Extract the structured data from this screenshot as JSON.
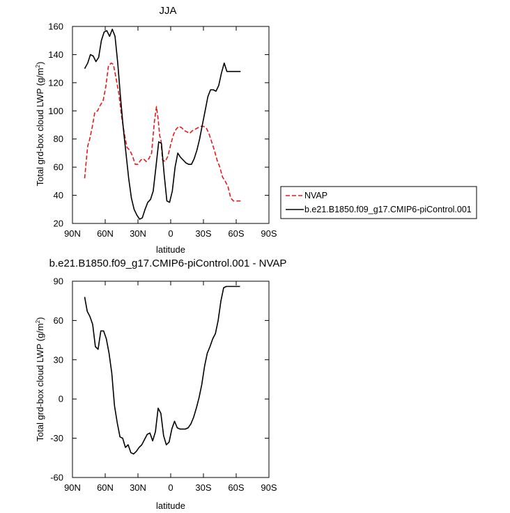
{
  "chart_data": [
    {
      "type": "line",
      "title": "JJA",
      "xlabel": "latitude",
      "ylabel": "Total grd-box cloud LWP (g/m",
      "ylabel_sup": "2",
      "ylabel_close": ")",
      "xlim": [
        90,
        -90
      ],
      "ylim": [
        20,
        160
      ],
      "xticks": [
        {
          "v": 90,
          "label": "90N"
        },
        {
          "v": 60,
          "label": "60N"
        },
        {
          "v": 30,
          "label": "30N"
        },
        {
          "v": 0,
          "label": "0"
        },
        {
          "v": -30,
          "label": "30S"
        },
        {
          "v": -60,
          "label": "60S"
        },
        {
          "v": -90,
          "label": "90S"
        }
      ],
      "yticks": [
        20,
        40,
        60,
        80,
        100,
        120,
        140,
        160
      ],
      "legend_placement": "right",
      "series": [
        {
          "name": "NVAP",
          "color": "#e41a1c",
          "dash": true,
          "x": [
            78.8,
            77.2,
            76.0,
            74.2,
            72.0,
            69.5,
            67.0,
            64.5,
            62.0,
            59.5,
            57.0,
            54.5,
            52.5,
            50.0,
            47.5,
            45.0,
            42.5,
            40.0,
            37.5,
            35.0,
            32.5,
            30.0,
            27.5,
            25.0,
            22.5,
            20.0,
            17.5,
            15.0,
            13.0,
            11.5,
            10.0,
            9.0,
            7.5,
            5.0,
            2.5,
            0.0,
            -2.5,
            -5.0,
            -7.5,
            -10.0,
            -12.5,
            -15.0,
            -17.5,
            -20.0,
            -22.5,
            -25.0,
            -27.5,
            -30.0,
            -32.5,
            -35.0,
            -37.5,
            -40.0,
            -42.5,
            -45.0,
            -47.5,
            -50.0,
            -52.5,
            -55.0,
            -57.5,
            -60.0,
            -62.5,
            -65.0
          ],
          "y": [
            52,
            66,
            75,
            80,
            88,
            99,
            100,
            104,
            107,
            117,
            132,
            134,
            133,
            123,
            112,
            96,
            84,
            74,
            72,
            68,
            62,
            62,
            65,
            66,
            64,
            66,
            70,
            92,
            103,
            94,
            82,
            80,
            65,
            64,
            68,
            76,
            83,
            87,
            89,
            88,
            86,
            85,
            84,
            86,
            87,
            88,
            89,
            89,
            88,
            84,
            78,
            72,
            65,
            60,
            53,
            50,
            46,
            38,
            36,
            36,
            36,
            36
          ],
          "x_trim": -66.0
        },
        {
          "name": "b.e21.B1850.f09_g17.CMIP6-piControl.001",
          "color": "#000000",
          "dash": false,
          "x": [
            78.8,
            76.0,
            73.5,
            71.0,
            68.5,
            66.0,
            63.5,
            61.0,
            58.5,
            56.0,
            53.5,
            51.0,
            48.5,
            46.0,
            43.5,
            41.0,
            38.5,
            36.0,
            33.5,
            31.0,
            28.5,
            26.0,
            23.5,
            21.0,
            18.5,
            16.0,
            13.5,
            11.0,
            8.5,
            6.0,
            3.5,
            1.0,
            -1.5,
            -4.0,
            -6.5,
            -9.0,
            -11.5,
            -14.0,
            -16.5,
            -19.0,
            -21.5,
            -24.0,
            -26.5,
            -29.0,
            -31.5,
            -34.0,
            -36.5,
            -39.0,
            -41.5,
            -44.0,
            -46.5,
            -49.0,
            -51.5,
            -54.0,
            -56.5,
            -59.0,
            -61.5,
            -64.0
          ],
          "y": [
            130,
            134,
            140,
            139,
            135,
            138,
            150,
            156,
            157,
            153,
            158,
            153,
            134,
            110,
            88,
            70,
            52,
            38,
            30,
            26,
            23,
            24,
            30,
            35,
            37,
            43,
            60,
            78,
            77,
            55,
            36,
            35,
            43,
            60,
            70,
            67,
            65,
            63,
            62,
            62,
            66,
            72,
            80,
            90,
            100,
            110,
            115,
            115,
            114,
            118,
            127,
            134,
            128,
            128,
            128,
            128,
            128,
            128
          ]
        }
      ]
    },
    {
      "type": "line",
      "title": "b.e21.B1850.f09_g17.CMIP6-piControl.001 - NVAP",
      "xlabel": "latitude",
      "ylabel": "Total grd-box cloud LWP (g/m",
      "ylabel_sup": "2",
      "ylabel_close": ")",
      "xlim": [
        90,
        -90
      ],
      "ylim": [
        -60,
        90
      ],
      "xticks": [
        {
          "v": 90,
          "label": "90N"
        },
        {
          "v": 60,
          "label": "60N"
        },
        {
          "v": 30,
          "label": "30N"
        },
        {
          "v": 0,
          "label": "0"
        },
        {
          "v": -30,
          "label": "30S"
        },
        {
          "v": -60,
          "label": "60S"
        },
        {
          "v": -90,
          "label": "90S"
        }
      ],
      "yticks": [
        -60,
        -30,
        0,
        30,
        60,
        90
      ],
      "series": [
        {
          "color": "#000000",
          "dash": false,
          "x": [
            78.8,
            76.5,
            74.0,
            71.5,
            69.0,
            66.5,
            64.0,
            61.5,
            59.0,
            56.5,
            54.0,
            51.5,
            49.0,
            46.5,
            44.0,
            41.5,
            39.0,
            36.5,
            34.0,
            31.5,
            29.0,
            26.5,
            24.0,
            21.5,
            19.0,
            16.5,
            14.0,
            11.5,
            9.0,
            6.5,
            4.0,
            1.5,
            -1.0,
            -3.5,
            -6.0,
            -8.5,
            -11.0,
            -13.5,
            -16.0,
            -18.5,
            -21.0,
            -23.5,
            -26.0,
            -28.5,
            -31.0,
            -33.5,
            -36.0,
            -38.5,
            -41.0,
            -43.5,
            -46.0,
            -48.5,
            -51.0,
            -53.5,
            -56.0,
            -58.5,
            -61.0,
            -63.5
          ],
          "y": [
            78,
            67,
            63,
            57,
            40,
            38,
            52,
            52,
            46,
            35,
            20,
            -5,
            -18,
            -29,
            -30,
            -37,
            -35,
            -41,
            -42,
            -40,
            -37,
            -35,
            -31,
            -27,
            -26,
            -32,
            -25,
            -7,
            -11,
            -28,
            -35,
            -33,
            -23,
            -17,
            -22,
            -23,
            -23,
            -23,
            -22,
            -19,
            -14,
            -7,
            1,
            11,
            25,
            35,
            40,
            46,
            50,
            60,
            75,
            85,
            86,
            86,
            86,
            86,
            86,
            86
          ]
        }
      ]
    }
  ]
}
